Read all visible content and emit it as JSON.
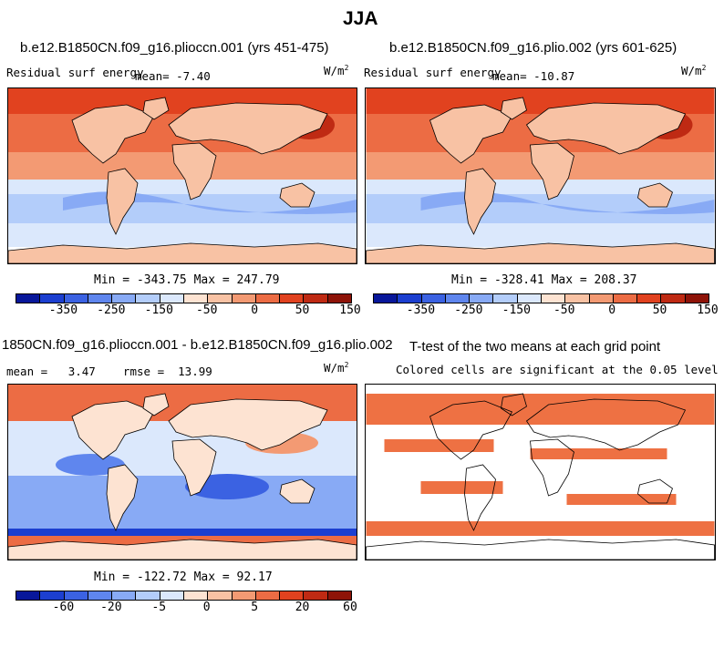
{
  "figure": {
    "title": "JJA"
  },
  "panels": [
    {
      "id": "p1",
      "title": "b.e12.B1850CN.f09_g16.plioccn.001 (yrs 451-475)",
      "left_label": "Residual surf energy",
      "mean_label": "mean=  -7.40",
      "units": "W/m",
      "units_exp": "2",
      "min_max": "Min = -343.75 Max = 247.79"
    },
    {
      "id": "p2",
      "title": "b.e12.B1850CN.f09_g16.plio.002 (yrs 601-625)",
      "left_label": "Residual surf energy",
      "mean_label": "mean= -10.87",
      "units": "W/m",
      "units_exp": "2",
      "min_max": "Min = -328.41 Max = 208.37"
    },
    {
      "id": "p3",
      "title": "1850CN.f09_g16.plioccn.001 - b.e12.B1850CN.f09_g16.plio.002",
      "left_label": "mean =   3.47    rmse =  13.99",
      "units": "W/m",
      "units_exp": "2",
      "min_max": "Min = -122.72 Max = 92.17"
    },
    {
      "id": "p4",
      "title": "T-test of the two means at each grid point",
      "subtitle": "Colored cells are significant at the 0.05 level"
    }
  ],
  "colorbars": {
    "abs": {
      "labels": [
        "-350",
        "-250",
        "-150",
        "-50",
        "0",
        "50",
        "150"
      ]
    },
    "diff": {
      "labels": [
        "-60",
        "-20",
        "-5",
        "0",
        "5",
        "20",
        "60"
      ]
    },
    "colors": [
      "#08179a",
      "#1c3fd0",
      "#3b62e2",
      "#5f86ee",
      "#88aaf5",
      "#b3cdfa",
      "#dbe8fc",
      "#fde3d2",
      "#f8c2a4",
      "#f39a73",
      "#ec6c44",
      "#e1421f",
      "#bf2a13",
      "#8e1308"
    ]
  }
}
